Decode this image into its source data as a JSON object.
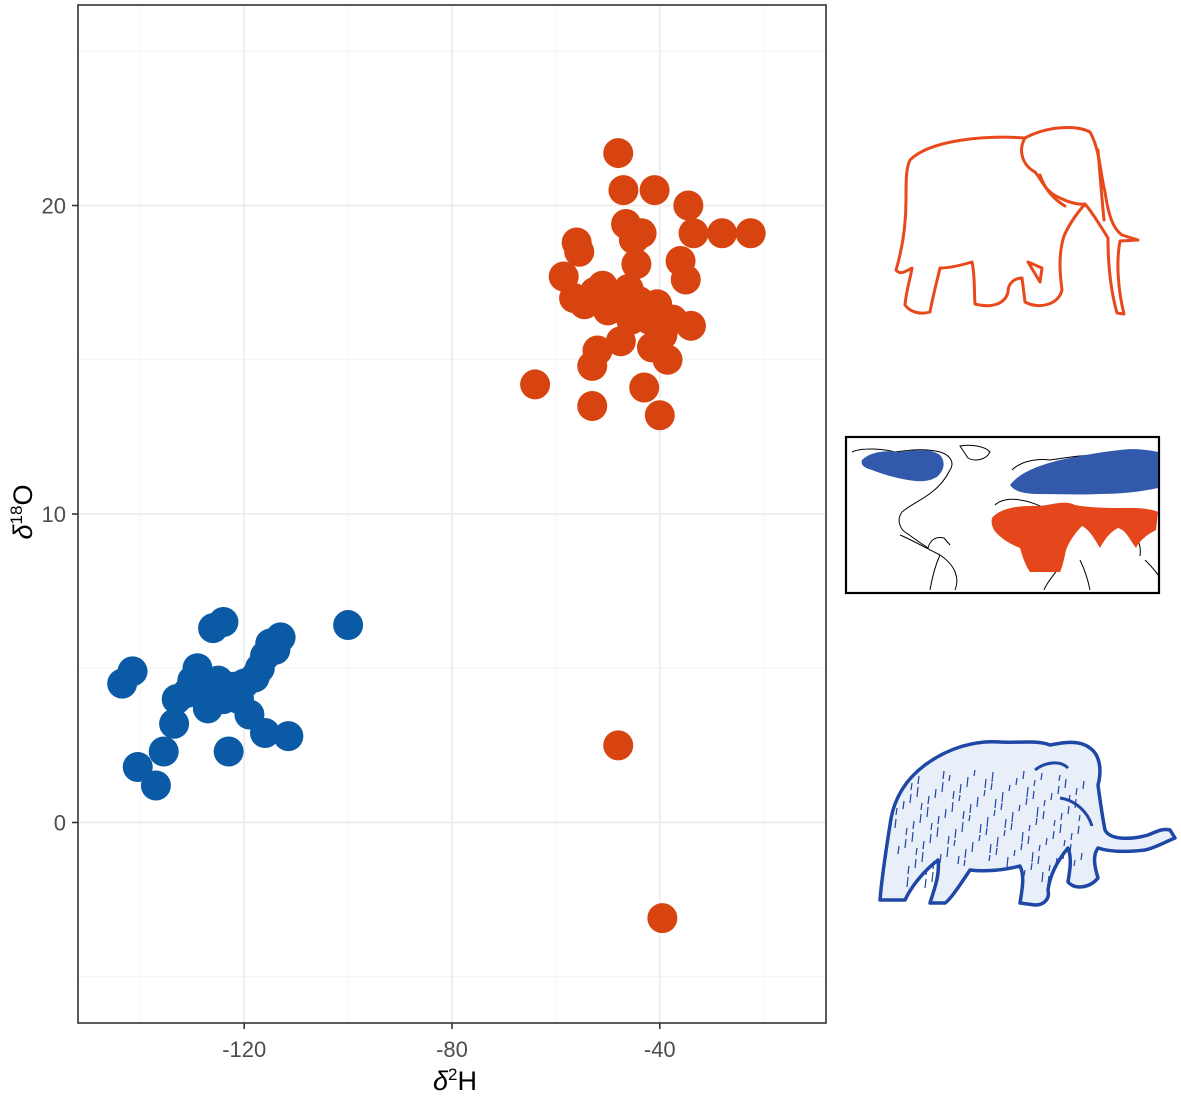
{
  "chart_data": {
    "type": "scatter",
    "title": "",
    "xlabel": {
      "prefix": "δ",
      "sup": "2",
      "suffix": "H"
    },
    "ylabel": {
      "prefix": "δ",
      "sup": "18",
      "suffix": "O"
    },
    "xlim": [
      -152,
      -8
    ],
    "ylim": [
      -6.5,
      26.5
    ],
    "x_ticks": [
      -120,
      -80,
      -40
    ],
    "y_ticks": [
      0,
      10,
      20
    ],
    "grid": true,
    "legend": "none",
    "series": [
      {
        "color": "#0b5aa6",
        "icon": "mammoth-icon",
        "points": [
          [
            -143.5,
            4.5
          ],
          [
            -141.5,
            4.9
          ],
          [
            -140.5,
            1.8
          ],
          [
            -137,
            1.2
          ],
          [
            -135.5,
            2.3
          ],
          [
            -133.5,
            3.2
          ],
          [
            -133,
            4.0
          ],
          [
            -131,
            4.2
          ],
          [
            -130,
            4.6
          ],
          [
            -129,
            5.0
          ],
          [
            -128,
            4.3
          ],
          [
            -127,
            3.7
          ],
          [
            -126,
            6.3
          ],
          [
            -126,
            4.2
          ],
          [
            -125,
            4.6
          ],
          [
            -124,
            6.5
          ],
          [
            -124,
            4.0
          ],
          [
            -123,
            2.3
          ],
          [
            -122,
            4.4
          ],
          [
            -121,
            4.0
          ],
          [
            -120,
            4.5
          ],
          [
            -119,
            3.5
          ],
          [
            -118,
            4.7
          ],
          [
            -117,
            5.0
          ],
          [
            -116,
            2.9
          ],
          [
            -116,
            5.4
          ],
          [
            -115,
            5.8
          ],
          [
            -114,
            5.6
          ],
          [
            -113,
            6.0
          ],
          [
            -111.5,
            2.8
          ],
          [
            -100,
            6.4
          ]
        ]
      },
      {
        "color": "#d84410",
        "icon": "elephant-icon",
        "points": [
          [
            -64,
            14.2
          ],
          [
            -58.5,
            17.7
          ],
          [
            -56.5,
            17.0
          ],
          [
            -56,
            18.8
          ],
          [
            -55.5,
            18.5
          ],
          [
            -54.5,
            16.8
          ],
          [
            -53,
            13.5
          ],
          [
            -53,
            14.8
          ],
          [
            -52.5,
            17.2
          ],
          [
            -52,
            15.3
          ],
          [
            -51,
            17.4
          ],
          [
            -50,
            16.6
          ],
          [
            -49,
            16.8
          ],
          [
            -48,
            21.7
          ],
          [
            -47.5,
            15.6
          ],
          [
            -47.5,
            17.0
          ],
          [
            -47,
            20.5
          ],
          [
            -46.5,
            19.4
          ],
          [
            -46,
            17.3
          ],
          [
            -45.5,
            16.3
          ],
          [
            -45,
            18.9
          ],
          [
            -44.5,
            18.1
          ],
          [
            -44,
            16.9
          ],
          [
            -43.5,
            19.1
          ],
          [
            -43,
            14.1
          ],
          [
            -42,
            16.3
          ],
          [
            -41.5,
            15.4
          ],
          [
            -41,
            20.5
          ],
          [
            -40.5,
            16.8
          ],
          [
            -40,
            13.2
          ],
          [
            -39.5,
            15.8
          ],
          [
            -38.5,
            15.0
          ],
          [
            -37.5,
            16.3
          ],
          [
            -36,
            18.2
          ],
          [
            -35,
            17.6
          ],
          [
            -34.5,
            20.0
          ],
          [
            -34,
            16.1
          ],
          [
            -33.5,
            19.1
          ],
          [
            -28,
            19.1
          ],
          [
            -22.5,
            19.1
          ],
          [
            -48,
            2.5
          ],
          [
            -39.5,
            -3.1
          ]
        ]
      }
    ]
  },
  "insets": {
    "elephant_color": "#e8491c",
    "mammoth_color": "#1f47a6",
    "map_colors": {
      "north_range": "#3359ad",
      "south_range": "#e6461c",
      "outline": "#000000"
    }
  }
}
